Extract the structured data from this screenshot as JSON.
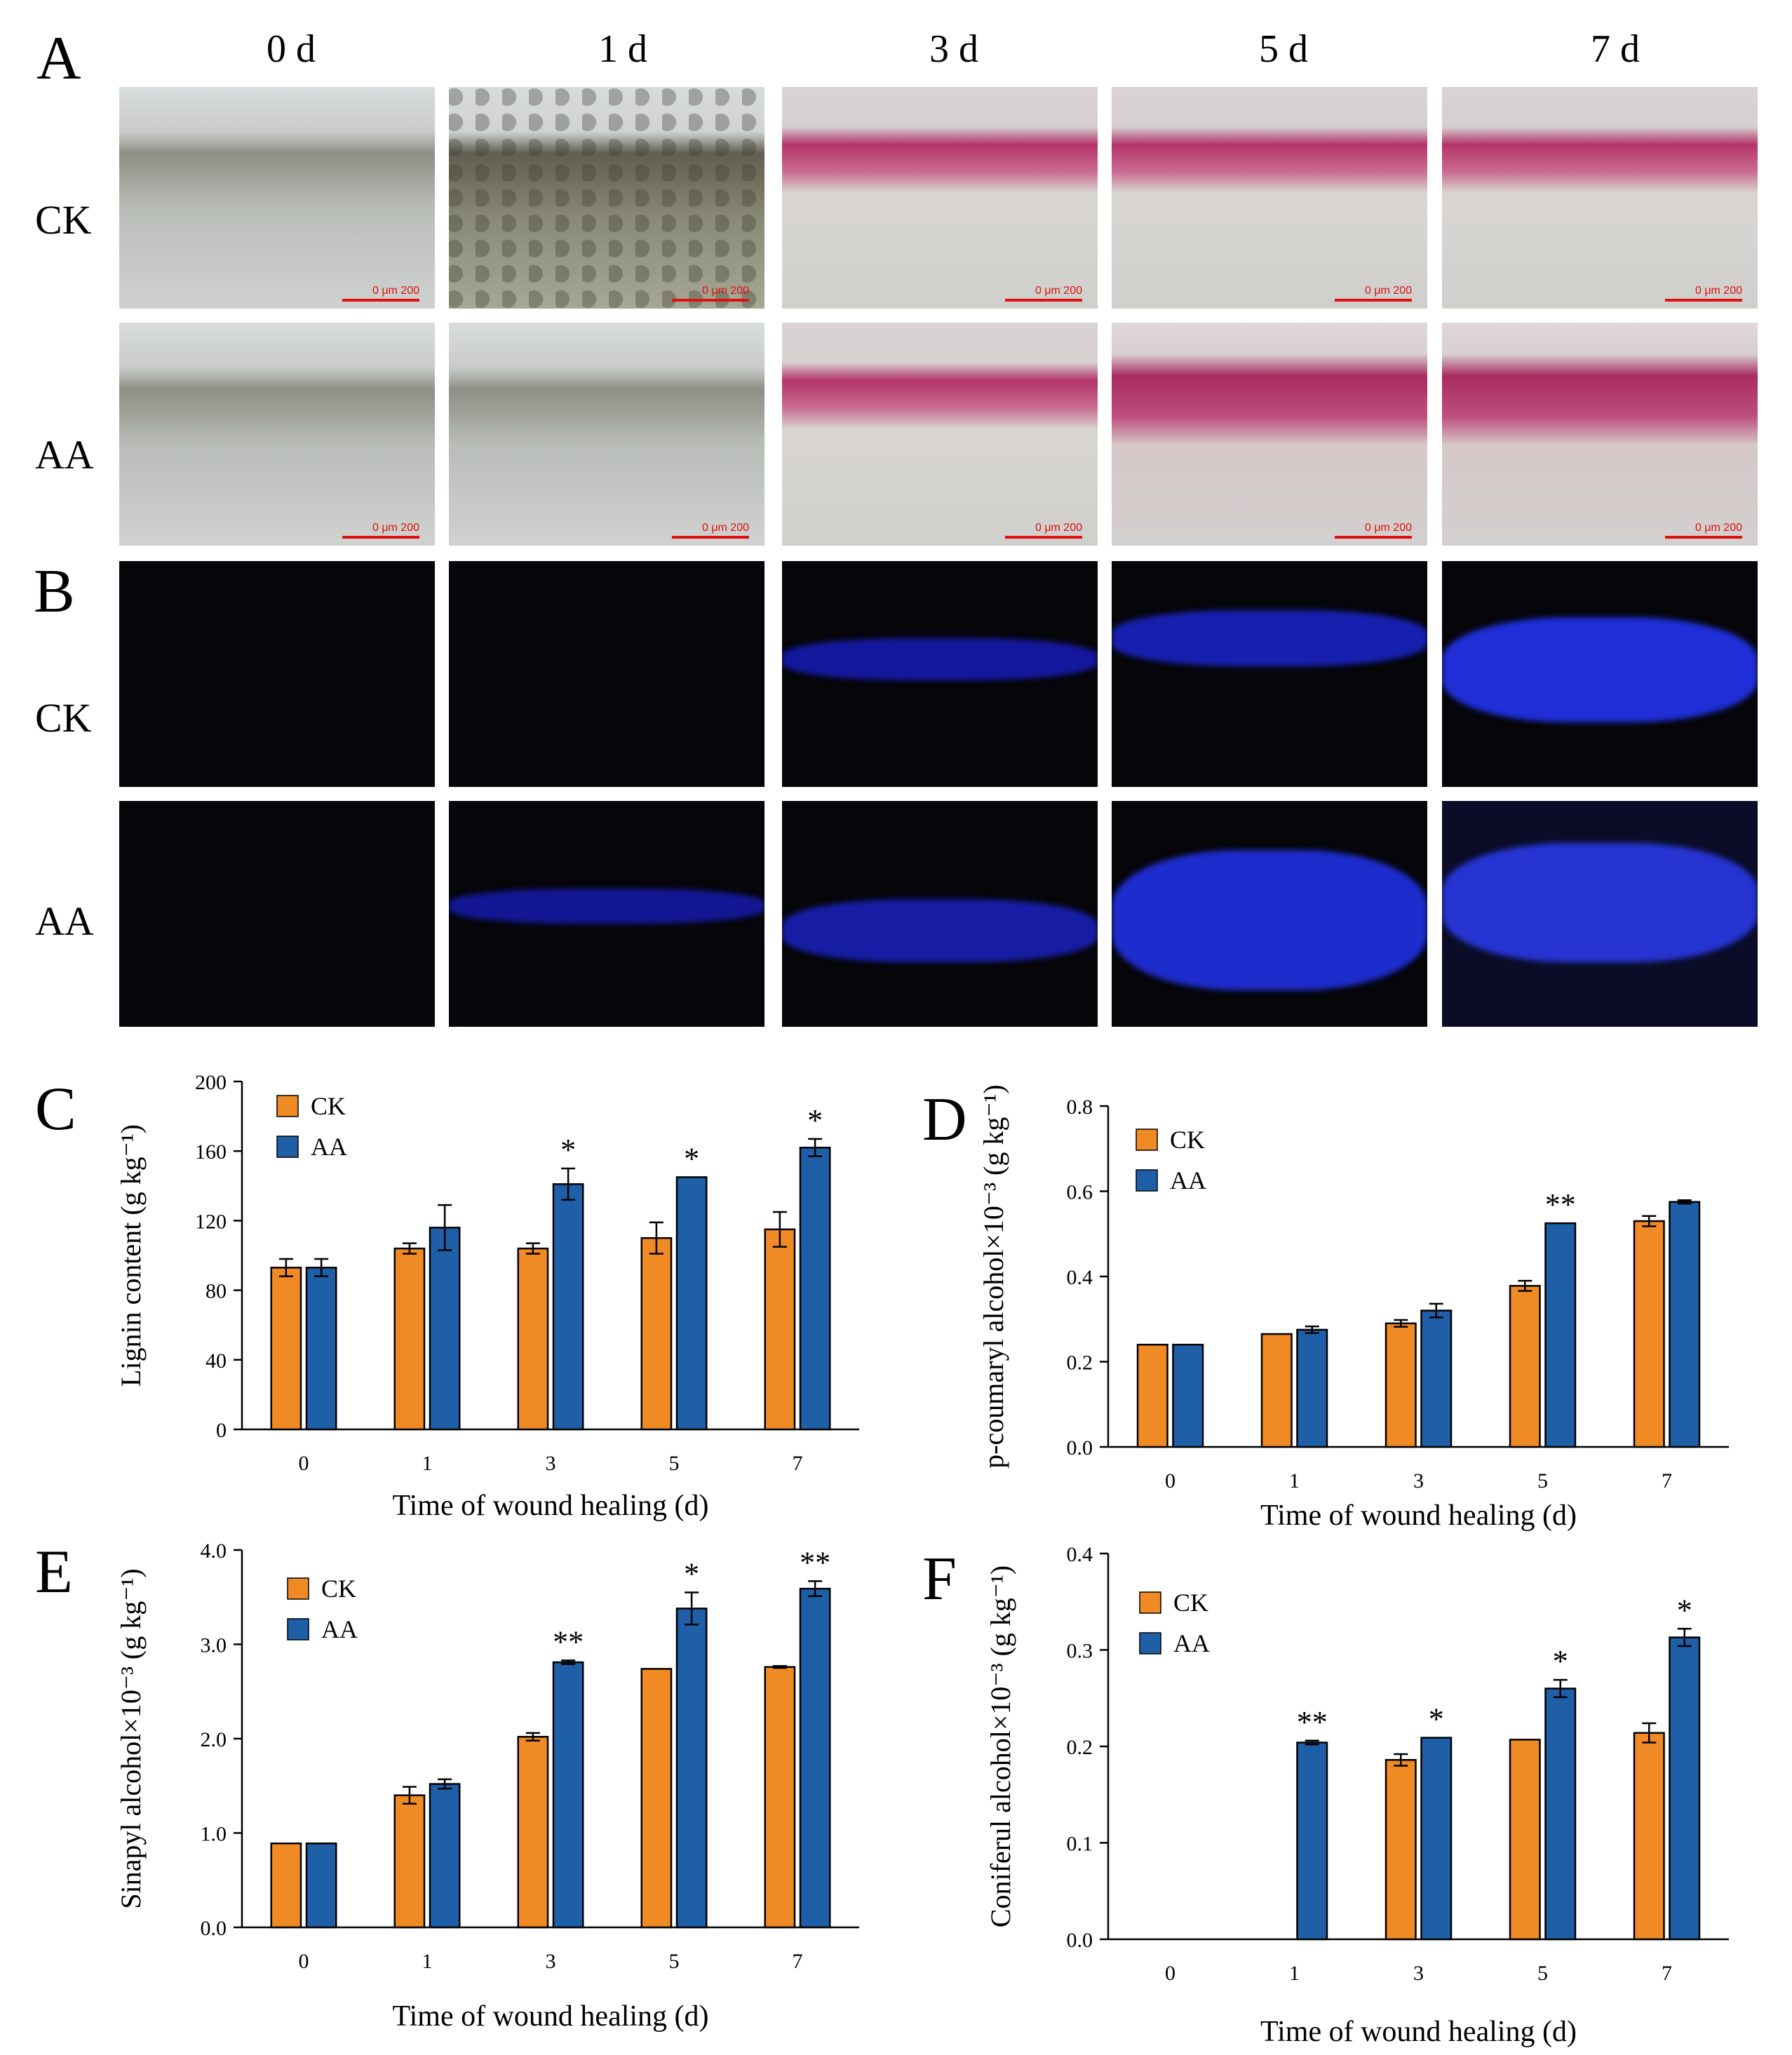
{
  "panels": {
    "A": "A",
    "B": "B",
    "C": "C",
    "D": "D",
    "E": "E",
    "F": "F"
  },
  "column_labels": [
    "0 d",
    "1 d",
    "3 d",
    "5 d",
    "7 d"
  ],
  "row_labels": {
    "ck": "CK",
    "aa": "AA"
  },
  "scale_bar_label": "0   μm 200",
  "chart_data": [
    {
      "panel": "C",
      "type": "bar",
      "categories": [
        "0",
        "1",
        "3",
        "5",
        "7"
      ],
      "series": [
        {
          "name": "CK",
          "values": [
            93,
            104,
            104,
            110,
            115
          ],
          "errors": [
            5,
            3,
            3,
            9,
            10
          ],
          "color": "#f08a24"
        },
        {
          "name": "AA",
          "values": [
            93,
            116,
            141,
            145,
            162
          ],
          "errors": [
            5,
            13,
            9,
            0,
            5
          ],
          "color": "#1f5fa8"
        }
      ],
      "significance": [
        "",
        "",
        "*",
        "*",
        "*"
      ],
      "ylabel": "Lignin content (g kg⁻¹)",
      "xlabel": "Time of  wound healing (d)",
      "ylim": [
        0,
        200
      ],
      "yticks": [
        "0",
        "40",
        "80",
        "120",
        "160",
        "200"
      ],
      "legend": "top-left"
    },
    {
      "panel": "D",
      "type": "bar",
      "categories": [
        "0",
        "1",
        "3",
        "5",
        "7"
      ],
      "series": [
        {
          "name": "CK",
          "values": [
            0.24,
            0.265,
            0.29,
            0.378,
            0.53
          ],
          "errors": [
            0,
            0,
            0.008,
            0.012,
            0.012
          ],
          "color": "#f08a24"
        },
        {
          "name": "AA",
          "values": [
            0.24,
            0.275,
            0.32,
            0.525,
            0.575
          ],
          "errors": [
            0,
            0.008,
            0.016,
            0,
            0.004
          ],
          "color": "#1f5fa8"
        }
      ],
      "significance": [
        "",
        "",
        "",
        "**",
        ""
      ],
      "ylabel": "p-coumaryl alcohol×10⁻³ (g kg⁻¹)",
      "xlabel": "Time of wound healing (d)",
      "ylim": [
        0,
        0.8
      ],
      "yticks": [
        "0.0",
        "0.2",
        "0.4",
        "0.6",
        "0.8"
      ],
      "legend": "top-left"
    },
    {
      "panel": "E",
      "type": "bar",
      "categories": [
        "0",
        "1",
        "3",
        "5",
        "7"
      ],
      "series": [
        {
          "name": "CK",
          "values": [
            0.89,
            1.4,
            2.02,
            2.74,
            2.76
          ],
          "errors": [
            0,
            0.09,
            0.04,
            0,
            0.01
          ],
          "color": "#f08a24"
        },
        {
          "name": "AA",
          "values": [
            0.89,
            1.52,
            2.81,
            3.38,
            3.59
          ],
          "errors": [
            0,
            0.05,
            0.02,
            0.17,
            0.08
          ],
          "color": "#1f5fa8"
        }
      ],
      "significance": [
        "",
        "",
        "**",
        "*",
        "**"
      ],
      "ylabel": "Sinapyl alcohol×10⁻³ (g kg⁻¹)",
      "xlabel": "Time of wound healing (d)",
      "ylim": [
        0,
        4
      ],
      "yticks": [
        "0.0",
        "1.0",
        "2.0",
        "3.0",
        "4.0"
      ],
      "legend": "top-left"
    },
    {
      "panel": "F",
      "type": "bar",
      "categories": [
        "0",
        "1",
        "3",
        "5",
        "7"
      ],
      "series": [
        {
          "name": "CK",
          "values": [
            0,
            0,
            0.186,
            0.207,
            0.214
          ],
          "errors": [
            0,
            0,
            0.006,
            0,
            0.01
          ],
          "color": "#f08a24"
        },
        {
          "name": "AA",
          "values": [
            0,
            0.204,
            0.209,
            0.26,
            0.313
          ],
          "errors": [
            0,
            0.002,
            0,
            0.009,
            0.009
          ],
          "color": "#1f5fa8"
        }
      ],
      "significance": [
        "",
        "**",
        "*",
        "*",
        "*"
      ],
      "ylabel": "Coniferul alcohol×10⁻³ (g kg⁻¹)",
      "xlabel": "Time of wound healing (d)",
      "ylim": [
        0,
        0.4
      ],
      "yticks": [
        "0.0",
        "0.1",
        "0.2",
        "0.3",
        "0.4"
      ],
      "legend": "top-left"
    }
  ]
}
